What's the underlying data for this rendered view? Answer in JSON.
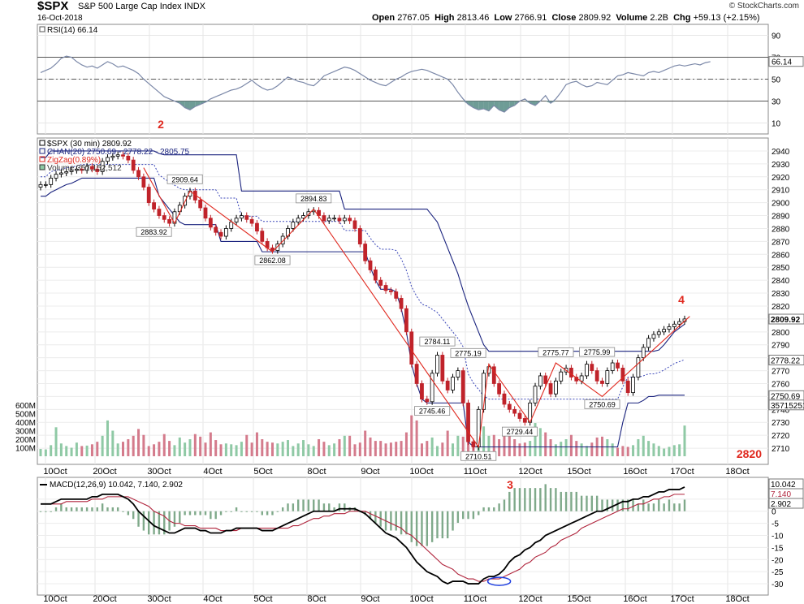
{
  "header": {
    "symbol": "$SPX",
    "name": "S&P 500 Large Cap Index",
    "exchange": "INDX",
    "date": "16-Oct-2018",
    "brand": "© StockCharts.com",
    "open_label": "Open",
    "open": "2767.05",
    "high_label": "High",
    "high": "2813.46",
    "low_label": "Low",
    "low": "2766.91",
    "close_label": "Close",
    "close": "2809.92",
    "volume_label": "Volume",
    "volume": "2.2B",
    "chg_label": "Chg",
    "chg": "+59.13 (+2.15%)"
  },
  "annotations": {
    "a2": "2",
    "a3": "3",
    "a4": "4",
    "a2820": "2820"
  },
  "colors": {
    "red": "#e0281e",
    "navy": "#1a237e",
    "up_vol": "#8fc9a5",
    "down_vol": "#d47b8c",
    "macd_line": "#000000",
    "signal": "#b0243c",
    "hist": "#7fa98a",
    "rsi": "#7b88a8",
    "rsi_fill": "#6e9c96",
    "band_dot": "#3a46b8"
  },
  "chart_data": [
    {
      "type": "line",
      "panel": "RSI",
      "title": "RSI(14) 66.14",
      "ylim": [
        0,
        100
      ],
      "yticks": [
        10,
        30,
        50,
        70,
        90
      ],
      "levels": [
        30,
        50,
        70
      ],
      "last_value": "66.14",
      "values": [
        56,
        58,
        60,
        64,
        69,
        71,
        70,
        66,
        63,
        61,
        62,
        60,
        63,
        66,
        64,
        61,
        62,
        60,
        58,
        55,
        50,
        46,
        42,
        38,
        34,
        32,
        30,
        28,
        24,
        22,
        25,
        27,
        29,
        32,
        34,
        36,
        38,
        40,
        41,
        43,
        46,
        49,
        45,
        42,
        40,
        41,
        44,
        48,
        52,
        50,
        48,
        47,
        45,
        44,
        48,
        53,
        55,
        57,
        59,
        61,
        60,
        58,
        55,
        52,
        49,
        47,
        45,
        44,
        47,
        50,
        52,
        55,
        57,
        58,
        59,
        58,
        56,
        54,
        52,
        50,
        45,
        38,
        32,
        27,
        24,
        22,
        23,
        21,
        26,
        22,
        20,
        24,
        26,
        30,
        32,
        28,
        26,
        30,
        35,
        28,
        32,
        38,
        45,
        47,
        48,
        45,
        43,
        44,
        47,
        46,
        45,
        49,
        53,
        54,
        56,
        55,
        54,
        53,
        56,
        57,
        56,
        58,
        60,
        62,
        63,
        62,
        63,
        64,
        63,
        65,
        66
      ]
    },
    {
      "type": "candlestick",
      "panel": "Price",
      "title": "$SPX (30 min) 2809.92",
      "ylim": [
        2700,
        2950
      ],
      "yticks": [
        2710,
        2720,
        2730,
        2740,
        2750,
        2760,
        2770,
        2780,
        2790,
        2800,
        2810,
        2820,
        2830,
        2840,
        2850,
        2860,
        2870,
        2880,
        2890,
        2900,
        2910,
        2920,
        2930,
        2940
      ],
      "x_tick_labels": [
        "10Oct",
        "20Oct",
        "30Oct",
        "4Oct",
        "5Oct",
        "8Oct",
        "9Oct",
        "10Oct",
        "11Oct",
        "12Oct",
        "15Oct",
        "16Oct",
        "17Oct",
        "18Oct"
      ],
      "legend": [
        "$SPX (30 min) 2809.92",
        "CHAN(20) 2750.69 - 2778.22 - 2805.75",
        "ZigZag(0.89%)",
        "Volume 357,152,512"
      ],
      "price_label": "2809.92",
      "right_labels": [
        "2809.92",
        "2805.75",
        "2778.22",
        "2750.69",
        "357152512"
      ],
      "closes": [
        2914,
        2914,
        2919,
        2922,
        2923,
        2924,
        2925,
        2926,
        2925,
        2928,
        2926,
        2924,
        2932,
        2935,
        2936,
        2937,
        2936,
        2933,
        2925,
        2920,
        2912,
        2900,
        2895,
        2890,
        2887,
        2884,
        2893,
        2898,
        2905,
        2909,
        2902,
        2896,
        2888,
        2881,
        2877,
        2874,
        2880,
        2885,
        2888,
        2890,
        2887,
        2884,
        2878,
        2870,
        2865,
        2863,
        2868,
        2874,
        2880,
        2885,
        2888,
        2890,
        2893,
        2894,
        2890,
        2886,
        2888,
        2888,
        2886,
        2888,
        2886,
        2880,
        2868,
        2855,
        2848,
        2840,
        2836,
        2832,
        2831,
        2826,
        2818,
        2800,
        2775,
        2760,
        2748,
        2746,
        2768,
        2782,
        2762,
        2755,
        2765,
        2770,
        2745,
        2715,
        2711,
        2740,
        2768,
        2773,
        2760,
        2752,
        2744,
        2740,
        2737,
        2733,
        2730,
        2745,
        2758,
        2766,
        2760,
        2752,
        2762,
        2769,
        2772,
        2765,
        2762,
        2766,
        2775,
        2770,
        2762,
        2760,
        2770,
        2776,
        2772,
        2762,
        2753,
        2765,
        2780,
        2788,
        2795,
        2798,
        2800,
        2802,
        2804,
        2806,
        2808,
        2810
      ],
      "chan_upper": [
        2935,
        2935,
        2940,
        2940,
        2940,
        2940,
        2940,
        2940,
        2940,
        2940,
        2940,
        2940,
        2940,
        2940,
        2940,
        2940,
        2940,
        2940,
        2940,
        2940,
        2940,
        2940,
        2940,
        2938,
        2937,
        2937,
        2937,
        2937,
        2937,
        2937,
        2937,
        2937,
        2937,
        2937,
        2937,
        2937,
        2937,
        2937,
        2937,
        2909,
        2909,
        2909,
        2909,
        2909,
        2909,
        2909,
        2909,
        2909,
        2909,
        2909,
        2909,
        2909,
        2909,
        2909,
        2909,
        2909,
        2909,
        2909,
        2909,
        2895,
        2895,
        2895,
        2895,
        2895,
        2895,
        2895,
        2895,
        2895,
        2895,
        2895,
        2895,
        2895,
        2895,
        2895,
        2895,
        2895,
        2890,
        2885,
        2875,
        2865,
        2855,
        2845,
        2832,
        2820,
        2810,
        2800,
        2790,
        2785,
        2785,
        2785,
        2785,
        2785,
        2785,
        2785,
        2785,
        2785,
        2785,
        2785,
        2785,
        2785,
        2785,
        2785,
        2785,
        2785,
        2785,
        2785,
        2785,
        2785,
        2785,
        2785,
        2785,
        2785,
        2785,
        2785,
        2785,
        2785,
        2785,
        2785,
        2785,
        2785,
        2786,
        2790,
        2795,
        2800,
        2803,
        2806
      ],
      "chan_lower": [
        2905,
        2905,
        2908,
        2910,
        2912,
        2914,
        2915,
        2917,
        2919,
        2919,
        2919,
        2919,
        2919,
        2919,
        2919,
        2919,
        2919,
        2919,
        2919,
        2919,
        2919,
        2919,
        2919,
        2905,
        2900,
        2895,
        2890,
        2885,
        2883,
        2883,
        2883,
        2883,
        2883,
        2883,
        2883,
        2870,
        2870,
        2870,
        2870,
        2870,
        2870,
        2870,
        2870,
        2862,
        2862,
        2862,
        2862,
        2862,
        2862,
        2862,
        2862,
        2862,
        2862,
        2862,
        2862,
        2862,
        2862,
        2862,
        2862,
        2862,
        2862,
        2862,
        2862,
        2862,
        2850,
        2840,
        2833,
        2833,
        2833,
        2831,
        2818,
        2800,
        2775,
        2760,
        2748,
        2745,
        2745,
        2745,
        2745,
        2745,
        2745,
        2745,
        2745,
        2715,
        2711,
        2711,
        2711,
        2711,
        2711,
        2711,
        2711,
        2711,
        2711,
        2711,
        2711,
        2711,
        2711,
        2711,
        2711,
        2711,
        2711,
        2711,
        2711,
        2711,
        2711,
        2711,
        2711,
        2711,
        2711,
        2711,
        2711,
        2711,
        2711,
        2730,
        2745,
        2745,
        2745,
        2747,
        2750,
        2750,
        2751,
        2751,
        2751,
        2751,
        2751,
        2751
      ],
      "zigzag": [
        [
          20,
          2927
        ],
        [
          26,
          2884
        ],
        [
          29,
          2909
        ],
        [
          45,
          2862
        ],
        [
          53,
          2895
        ],
        [
          85,
          2711
        ],
        [
          87,
          2775
        ],
        [
          95,
          2730
        ],
        [
          100,
          2776
        ],
        [
          109,
          2750
        ],
        [
          126,
          2812
        ]
      ],
      "zigzag_labels": [
        {
          "i": 22,
          "v": 2883.92,
          "text": "2883.92",
          "pos": "below"
        },
        {
          "i": 28,
          "v": 2909.64,
          "text": "2909.64",
          "pos": "above"
        },
        {
          "i": 45,
          "v": 2862.08,
          "text": "2862.08",
          "pos": "below"
        },
        {
          "i": 53,
          "v": 2894.83,
          "text": "2894.83",
          "pos": "above"
        },
        {
          "i": 77,
          "v": 2784.11,
          "text": "2784.11",
          "pos": "above"
        },
        {
          "i": 76,
          "v": 2745.46,
          "text": "2745.46",
          "pos": "below"
        },
        {
          "i": 83,
          "v": 2775.19,
          "text": "2775.19",
          "pos": "above"
        },
        {
          "i": 85,
          "v": 2710.51,
          "text": "2710.51",
          "pos": "below"
        },
        {
          "i": 93,
          "v": 2729.44,
          "text": "2729.44",
          "pos": "below"
        },
        {
          "i": 100,
          "v": 2775.77,
          "text": "2775.77",
          "pos": "above"
        },
        {
          "i": 108,
          "v": 2775.99,
          "text": "2775.99",
          "pos": "above"
        },
        {
          "i": 109,
          "v": 2750.69,
          "text": "2750.69",
          "pos": "below"
        }
      ],
      "volume_ticks": [
        "100M",
        "200M",
        "300M",
        "400M",
        "500M",
        "600M"
      ],
      "volume_m": [
        85,
        80,
        130,
        340,
        150,
        120,
        100,
        160,
        120,
        125,
        140,
        170,
        240,
        420,
        300,
        150,
        170,
        200,
        240,
        320,
        250,
        120,
        140,
        170,
        260,
        180,
        130,
        220,
        160,
        200,
        260,
        230,
        160,
        280,
        190,
        140,
        150,
        140,
        130,
        170,
        250,
        160,
        280,
        200,
        170,
        160,
        150,
        170,
        190,
        120,
        150,
        190,
        140,
        120,
        200,
        170,
        130,
        150,
        200,
        240,
        240,
        140,
        160,
        300,
        220,
        180,
        180,
        150,
        160,
        170,
        180,
        280,
        480,
        420,
        150,
        180,
        220,
        120,
        160,
        300,
        150,
        240,
        230,
        180,
        170,
        270,
        350,
        240,
        250,
        200,
        260,
        250,
        200,
        150,
        160,
        180,
        390,
        330,
        280,
        200,
        140,
        170,
        200,
        250,
        180,
        150,
        120,
        160,
        220,
        230,
        200,
        150,
        100,
        120,
        110,
        130,
        200,
        240,
        180,
        150,
        120,
        90,
        110,
        130,
        140,
        360
      ]
    },
    {
      "type": "line",
      "panel": "MACD",
      "title": "MACD(12,26,9) 10.042, 7.140, 2.902",
      "ylim": [
        -32,
        12
      ],
      "yticks": [
        -30,
        -25,
        -20,
        -15,
        -10,
        -5,
        0,
        5
      ],
      "right_labels": [
        "10.042",
        "7.140",
        "2.902"
      ],
      "x_tick_labels": [
        "10Oct",
        "20Oct",
        "30Oct",
        "4Oct",
        "5Oct",
        "8Oct",
        "9Oct",
        "10Oct",
        "11Oct",
        "12Oct",
        "15Oct",
        "16Oct",
        "17Oct",
        "18Oct"
      ],
      "macd": [
        3,
        3,
        3,
        4,
        5,
        5,
        5,
        5,
        5,
        5,
        6,
        6,
        7,
        7,
        7,
        7,
        6,
        5,
        3,
        0,
        -2,
        -4,
        -6,
        -7,
        -8,
        -9,
        -9,
        -8,
        -7,
        -7,
        -7,
        -8,
        -8,
        -9,
        -9,
        -9,
        -8,
        -8,
        -7,
        -7,
        -7,
        -7,
        -7,
        -8,
        -8,
        -8,
        -7,
        -6,
        -5,
        -4,
        -3,
        -2,
        -1,
        0,
        0,
        0,
        0,
        0,
        1,
        1,
        1,
        1,
        0,
        -1,
        -3,
        -5,
        -7,
        -9,
        -10,
        -11,
        -13,
        -15,
        -18,
        -21,
        -23,
        -25,
        -26,
        -27,
        -29,
        -30,
        -29,
        -29,
        -29,
        -30,
        -30,
        -30,
        -28,
        -27,
        -27,
        -26,
        -24,
        -21,
        -19,
        -18,
        -16,
        -15,
        -13,
        -12,
        -10,
        -9,
        -8,
        -7,
        -6,
        -5,
        -4,
        -3,
        -2,
        -1,
        0,
        0,
        1,
        2,
        3,
        4,
        4,
        5,
        5,
        6,
        6,
        7,
        8,
        8,
        9,
        9,
        9,
        10
      ],
      "signal": [
        3,
        3,
        3,
        3,
        3,
        4,
        4,
        4,
        4,
        4,
        5,
        5,
        5,
        6,
        6,
        6,
        6,
        6,
        5,
        4,
        3,
        2,
        0,
        -1,
        -2,
        -4,
        -5,
        -5,
        -6,
        -6,
        -6,
        -7,
        -7,
        -7,
        -7,
        -8,
        -8,
        -8,
        -8,
        -7,
        -7,
        -7,
        -7,
        -7,
        -7,
        -7,
        -7,
        -7,
        -7,
        -6,
        -6,
        -5,
        -4,
        -3,
        -3,
        -2,
        -2,
        -1,
        -1,
        -1,
        0,
        0,
        0,
        0,
        -1,
        -2,
        -3,
        -4,
        -5,
        -6,
        -7,
        -9,
        -10,
        -12,
        -14,
        -16,
        -18,
        -20,
        -22,
        -23,
        -24,
        -26,
        -27,
        -28,
        -28,
        -29,
        -29,
        -28,
        -28,
        -28,
        -27,
        -26,
        -25,
        -24,
        -22,
        -21,
        -19,
        -18,
        -17,
        -15,
        -14,
        -12,
        -11,
        -10,
        -9,
        -7,
        -6,
        -5,
        -4,
        -3,
        -2,
        -1,
        0,
        1,
        1,
        2,
        3,
        3,
        4,
        5,
        5,
        6,
        6,
        7,
        7,
        7
      ]
    }
  ]
}
